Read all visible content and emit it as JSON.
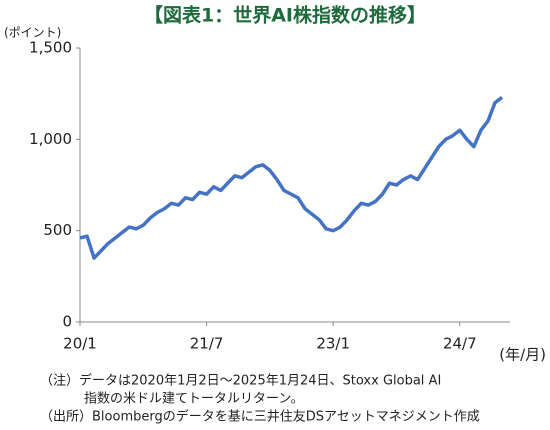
{
  "chart_data": {
    "type": "line",
    "title": "【図表1：世界AI株指数の推移】",
    "y_label": "(ポイント)",
    "x_label": "(年/月)",
    "x": [
      "20/1",
      "20/2",
      "20/3",
      "20/4",
      "20/5",
      "20/6",
      "20/7",
      "20/8",
      "20/9",
      "20/10",
      "20/11",
      "20/12",
      "21/1",
      "21/2",
      "21/3",
      "21/4",
      "21/5",
      "21/6",
      "21/7",
      "21/8",
      "21/9",
      "21/10",
      "21/11",
      "21/12",
      "22/1",
      "22/2",
      "22/3",
      "22/4",
      "22/5",
      "22/6",
      "22/7",
      "22/8",
      "22/9",
      "22/10",
      "22/11",
      "22/12",
      "23/1",
      "23/2",
      "23/3",
      "23/4",
      "23/5",
      "23/6",
      "23/7",
      "23/8",
      "23/9",
      "23/10",
      "23/11",
      "23/12",
      "24/1",
      "24/2",
      "24/3",
      "24/4",
      "24/5",
      "24/6",
      "24/7",
      "24/8",
      "24/9",
      "24/10",
      "24/11",
      "24/12",
      "25/1"
    ],
    "series": [
      {
        "color": "#4472c4",
        "values": [
          460,
          470,
          350,
          390,
          430,
          460,
          490,
          520,
          510,
          530,
          570,
          600,
          620,
          650,
          640,
          680,
          670,
          710,
          700,
          740,
          720,
          760,
          800,
          790,
          820,
          850,
          860,
          830,
          780,
          720,
          700,
          680,
          620,
          590,
          560,
          510,
          500,
          520,
          560,
          610,
          650,
          640,
          660,
          700,
          760,
          750,
          780,
          800,
          780,
          840,
          900,
          960,
          1000,
          1020,
          1050,
          1000,
          960,
          1050,
          1100,
          1200,
          1230
        ]
      }
    ],
    "xticks": [
      "20/1",
      "21/7",
      "23/1",
      "24/7"
    ],
    "ylim": [
      0,
      1500
    ],
    "yticks": [
      0,
      500,
      {
        "value": 1000,
        "label": "1,000"
      },
      {
        "value": 1500,
        "label": "1,500"
      }
    ],
    "notes": [
      "（注）データは2020年1月2日～2025年1月24日、Stoxx Global AI",
      "指数の米ドル建てトータルリターン。",
      "（出所）Bloombergのデータを基に三井住友DSアセットマネジメント作成"
    ]
  }
}
